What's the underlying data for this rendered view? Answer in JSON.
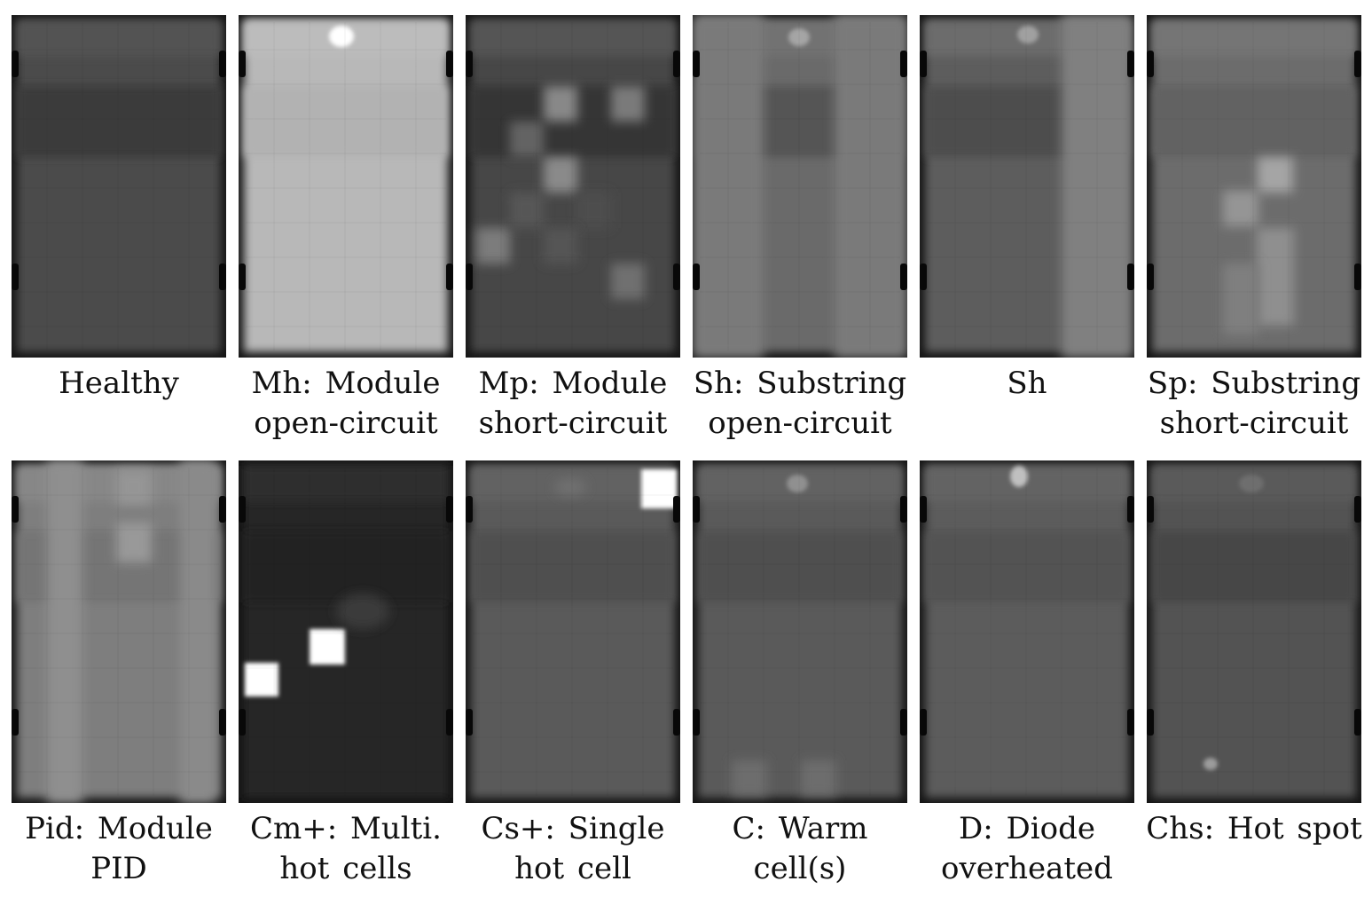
{
  "panels": [
    {
      "id": "healthy",
      "caption": [
        "Healthy"
      ],
      "fill": "#4b4b4b",
      "top_band": "#525252",
      "dark_band": "#3a3a3a",
      "features": []
    },
    {
      "id": "module-open-circuit",
      "caption": [
        "Mh: Module",
        "open-circuit"
      ],
      "fill": "#b8b8b8",
      "top_band": "#bcbcbc",
      "dark_band": "#b2b2b2",
      "features": [
        "hot-spot-top"
      ]
    },
    {
      "id": "module-short-circuit",
      "caption": [
        "Mp: Module",
        "short-circuit"
      ],
      "fill": "#474747",
      "top_band": "#545454",
      "dark_band": "#363636",
      "features": [
        "patchy-cells"
      ]
    },
    {
      "id": "substring-open-circuit",
      "caption": [
        "Sh: Substring",
        "open-circuit"
      ],
      "fill": "#6a6a6a",
      "top_band": "#727272",
      "dark_band": "#545454",
      "features": [
        "warm-substrings-outer"
      ]
    },
    {
      "id": "substring-open-circuit-2",
      "caption": [
        "Sh"
      ],
      "fill": "#5d5d5d",
      "top_band": "#6c6c6c",
      "dark_band": "#4e4e4e",
      "features": [
        "warm-substring-right"
      ]
    },
    {
      "id": "substring-short-circuit",
      "caption": [
        "Sp: Substring",
        "short-circuit"
      ],
      "fill": "#6c6c6c",
      "top_band": "#757575",
      "dark_band": "#626262",
      "features": [
        "warm-cells-diagonal"
      ]
    },
    {
      "id": "module-pid",
      "caption": [
        "Pid: Module",
        "PID"
      ],
      "fill": "#7e7e7e",
      "top_band": "#878787",
      "dark_band": "#747474",
      "features": [
        "pid-pattern"
      ]
    },
    {
      "id": "multi-hot-cells",
      "caption": [
        "Cm+: Multi.",
        "hot cells"
      ],
      "fill": "#272727",
      "top_band": "#2e2e2e",
      "dark_band": "#242424",
      "features": [
        "two-hot-cells"
      ]
    },
    {
      "id": "single-hot-cell",
      "caption": [
        "Cs+: Single",
        "hot cell"
      ],
      "fill": "#5a5a5a",
      "top_band": "#626262",
      "dark_band": "#4f4f4f",
      "features": [
        "hot-cell-corner"
      ]
    },
    {
      "id": "warm-cells",
      "caption": [
        "C: Warm",
        "cell(s)"
      ],
      "fill": "#5a5a5a",
      "top_band": "#626262",
      "dark_band": "#4f4f4f",
      "features": [
        "warm-cells-bottom"
      ]
    },
    {
      "id": "diode-overheated",
      "caption": [
        "D: Diode",
        "overheated"
      ],
      "fill": "#5c5c5c",
      "top_band": "#646464",
      "dark_band": "#525252",
      "features": [
        "diode-spot"
      ]
    },
    {
      "id": "hot-spot",
      "caption": [
        "Chs: Hot spot"
      ],
      "fill": "#525252",
      "top_band": "#5a5a5a",
      "dark_band": "#474747",
      "features": [
        "small-hot-spot"
      ]
    }
  ]
}
